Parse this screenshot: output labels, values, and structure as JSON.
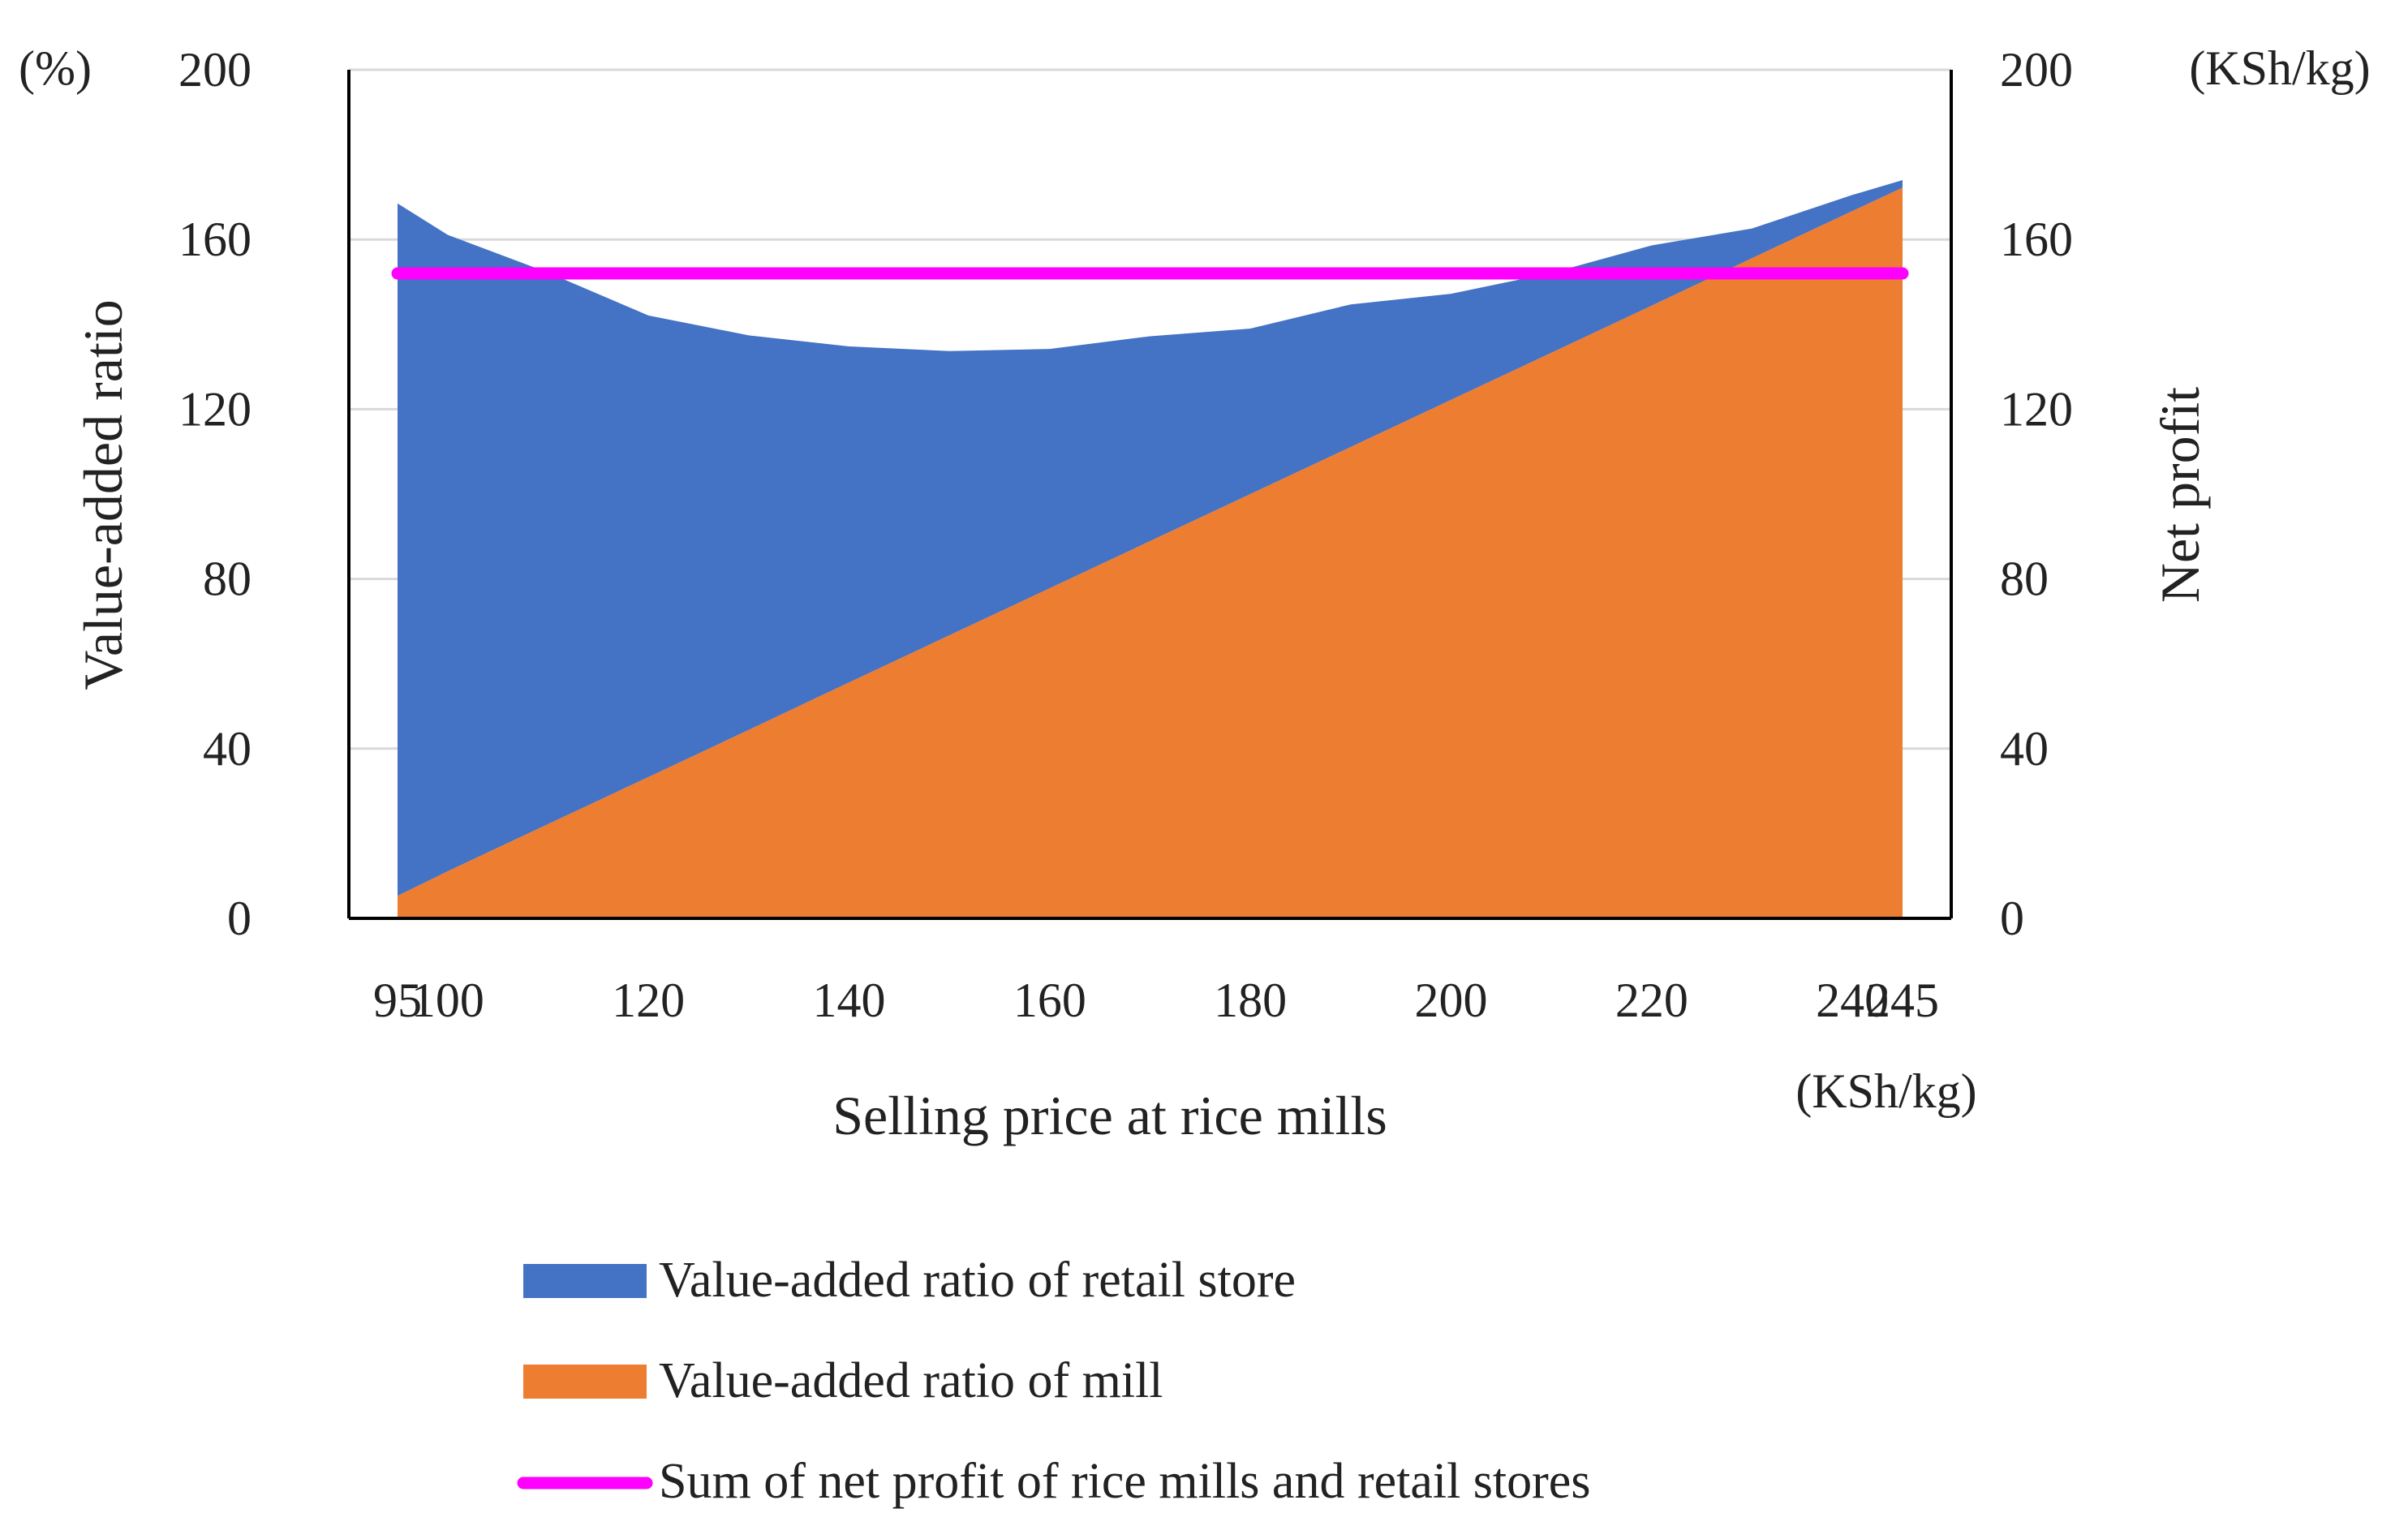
{
  "chart_data": {
    "type": "area",
    "x": [
      95,
      100,
      110,
      120,
      130,
      140,
      150,
      160,
      170,
      180,
      190,
      200,
      210,
      220,
      230,
      240,
      245
    ],
    "x_tick_labels": [
      "95",
      "100",
      "120",
      "140",
      "160",
      "180",
      "200",
      "220",
      "240",
      "245"
    ],
    "x_tick_values": [
      95,
      100,
      120,
      140,
      160,
      180,
      200,
      220,
      240,
      245
    ],
    "xlabel": "Selling price at rice mills",
    "xunit": "(KSh/kg)",
    "ylabel_left": "Value-added ratio",
    "yunit_left": "(%)",
    "ylabel_right": "Net profit",
    "yunit_right": "(KSh/kg)",
    "ylim": [
      0,
      200
    ],
    "y_ticks": [
      0,
      40,
      80,
      120,
      160,
      200
    ],
    "grid": true,
    "legend_position": "bottom",
    "series": [
      {
        "name": "Value-added ratio of mill",
        "kind": "area",
        "axis": "left",
        "color": "#ED7D31",
        "values": [
          5.3,
          11.1,
          22.2,
          33.3,
          44.4,
          55.6,
          66.7,
          77.8,
          88.9,
          100.0,
          111.1,
          122.2,
          133.3,
          144.4,
          155.6,
          166.7,
          172.2
        ]
      },
      {
        "name": "Value-added ratio of retail store",
        "kind": "stacked-area",
        "axis": "left",
        "color": "#4472C4",
        "values": [
          163.2,
          150.0,
          130.0,
          108.8,
          93.0,
          79.2,
          67.0,
          56.4,
          48.3,
          39.0,
          33.6,
          25.0,
          18.8,
          14.2,
          7.0,
          3.8,
          1.8
        ]
      },
      {
        "name": "Sum of net profit of rice mills and retail stores",
        "kind": "line",
        "axis": "right",
        "color": "#FF00FF",
        "values": [
          152,
          152,
          152,
          152,
          152,
          152,
          152,
          152,
          152,
          152,
          152,
          152,
          152,
          152,
          152,
          152,
          152
        ]
      }
    ]
  }
}
